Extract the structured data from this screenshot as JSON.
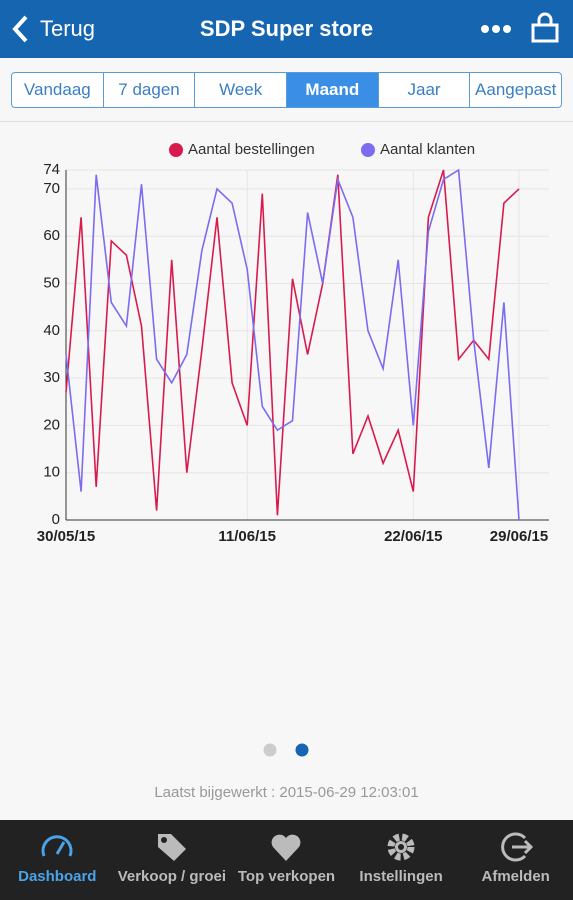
{
  "header": {
    "back": "Terug",
    "title": "SDP Super store"
  },
  "tabs": {
    "items": [
      "Vandaag",
      "7 dagen",
      "Week",
      "Maand",
      "Jaar",
      "Aangepast"
    ],
    "selected": 3
  },
  "chart_data": {
    "type": "line",
    "categories": [
      "30/05/15",
      null,
      null,
      null,
      null,
      null,
      null,
      null,
      null,
      null,
      null,
      null,
      "11/06/15",
      null,
      null,
      null,
      null,
      null,
      null,
      null,
      null,
      null,
      null,
      "22/06/15",
      null,
      null,
      null,
      null,
      null,
      null,
      "29/06/15"
    ],
    "series": [
      {
        "name": "Aantal bestellingen",
        "color": "#d81b4f",
        "values": [
          27,
          64,
          7,
          59,
          56,
          41,
          2,
          55,
          10,
          36,
          64,
          29,
          20,
          69,
          1,
          51,
          35,
          50,
          73,
          14,
          22,
          12,
          19,
          6,
          64,
          74,
          34,
          38,
          34,
          67,
          70
        ]
      },
      {
        "name": "Aantal klanten",
        "color": "#7b6cf0",
        "values": [
          35,
          6,
          73,
          46,
          41,
          71,
          34,
          29,
          35,
          57,
          70,
          67,
          53,
          24,
          19,
          21,
          65,
          50,
          72,
          64,
          40,
          32,
          55,
          20,
          61,
          72,
          74,
          38,
          11,
          46,
          0
        ]
      }
    ],
    "ylim": [
      0,
      74
    ],
    "yticks": [
      0,
      10,
      20,
      30,
      40,
      50,
      60,
      70,
      74
    ],
    "grid": true
  },
  "pager": {
    "pages": 2,
    "current": 1
  },
  "footer": {
    "updated": "Laatst bijgewerkt : 2015-06-29 12:03:01"
  },
  "nav": {
    "items": [
      "Dashboard",
      "Verkoop / groei",
      "Top verkopen",
      "Instellingen",
      "Afmelden"
    ],
    "selected": 0
  }
}
